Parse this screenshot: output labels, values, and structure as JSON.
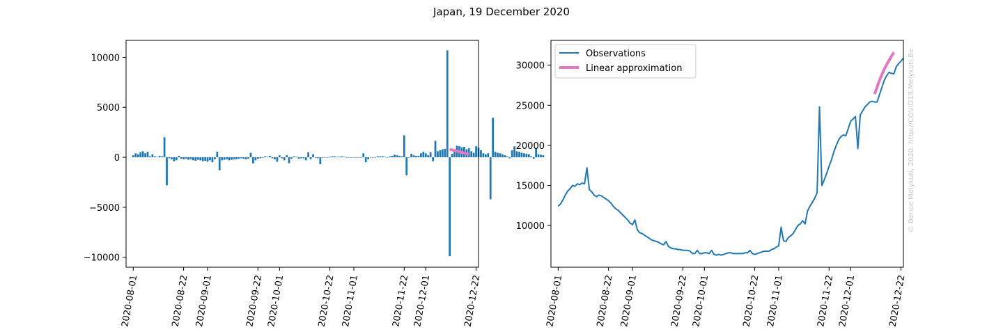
{
  "figure": {
    "title": "Japan, 19 December 2020",
    "watermark": "© Bence Melykuti, 2020. http://COVID19.Melykuti.Be"
  },
  "chart_data": [
    {
      "type": "bar",
      "panel": "left",
      "title": "",
      "xlabel": "",
      "ylabel": "",
      "xlim": [
        "2020-07-29",
        "2020-12-23"
      ],
      "ylim": [
        -11000,
        11700
      ],
      "x_ticks": [
        "2020-08-01",
        "2020-08-22",
        "2020-09-01",
        "2020-09-22",
        "2020-10-01",
        "2020-10-22",
        "2020-11-01",
        "2020-11-22",
        "2020-12-01",
        "2020-12-22"
      ],
      "y_ticks": [
        -10000,
        -5000,
        0,
        5000,
        10000
      ],
      "y_tick_labels": [
        "−10000",
        "−5000",
        "0",
        "5000",
        "10000"
      ],
      "grid": false,
      "colors": {
        "bars": "#1f77b4",
        "fit": "#e377c2"
      },
      "start_date": "2020-08-01",
      "values": [
        200,
        400,
        300,
        500,
        600,
        400,
        550,
        100,
        300,
        100,
        50,
        150,
        100,
        2000,
        -2800,
        -100,
        -200,
        -400,
        -300,
        150,
        -150,
        -200,
        -150,
        -250,
        -200,
        -300,
        -350,
        -250,
        -300,
        -400,
        -350,
        -450,
        -300,
        -500,
        -200,
        550,
        -1300,
        -300,
        -250,
        -200,
        -300,
        -250,
        -200,
        -200,
        -150,
        -100,
        -150,
        -200,
        -150,
        450,
        -600,
        -300,
        -150,
        -100,
        -50,
        100,
        50,
        150,
        -100,
        -200,
        -450,
        200,
        -100,
        -300,
        200,
        -600,
        -150,
        100,
        50,
        -150,
        -100,
        -100,
        -300,
        500,
        -200,
        300,
        -50,
        -100,
        -700,
        0,
        0,
        0,
        50,
        100,
        100,
        50,
        50,
        100,
        50,
        0,
        0,
        0,
        0,
        0,
        0,
        0,
        400,
        -500,
        -200,
        0,
        0,
        0,
        100,
        100,
        100,
        50,
        0,
        100,
        150,
        250,
        200,
        150,
        100,
        2200,
        -1800,
        0,
        350,
        200,
        150,
        150,
        400,
        550,
        400,
        200,
        500,
        -400,
        1650,
        600,
        700,
        800,
        850,
        10700,
        -9900,
        350,
        750,
        1150,
        1100,
        1000,
        1050,
        800,
        900,
        600,
        450,
        1100,
        950,
        700,
        400,
        300,
        400,
        -4200,
        3950,
        550,
        450,
        400,
        300,
        200,
        100,
        -100,
        700,
        1100,
        600,
        550,
        450,
        400,
        350,
        300,
        100,
        -150,
        900,
        300,
        250,
        200
      ],
      "fit": {
        "x": [
          "2020-12-11",
          "2020-12-19"
        ],
        "y": [
          800,
          300
        ]
      }
    },
    {
      "type": "line",
      "panel": "right",
      "title": "",
      "xlabel": "",
      "ylabel": "",
      "xlim": [
        "2020-07-29",
        "2020-12-23"
      ],
      "ylim": [
        4800,
        33100
      ],
      "x_ticks": [
        "2020-08-01",
        "2020-08-22",
        "2020-09-01",
        "2020-09-22",
        "2020-10-01",
        "2020-10-22",
        "2020-11-01",
        "2020-11-22",
        "2020-12-01",
        "2020-12-22"
      ],
      "y_ticks": [
        10000,
        15000,
        20000,
        25000,
        30000
      ],
      "grid": false,
      "legend": {
        "placement": "top-left"
      },
      "colors": {
        "observations": "#1f77b4",
        "fit": "#e377c2"
      },
      "series": [
        {
          "name": "Observations",
          "start_date": "2020-08-01",
          "values": [
            12400,
            12700,
            13200,
            13800,
            14300,
            14600,
            15000,
            14900,
            15200,
            15100,
            15300,
            15200,
            17200,
            14500,
            14200,
            13800,
            13600,
            13800,
            13700,
            13500,
            13300,
            13100,
            12800,
            12400,
            12100,
            11900,
            11600,
            11300,
            11000,
            10700,
            10300,
            10100,
            10700,
            9500,
            9100,
            9000,
            8800,
            8600,
            8400,
            8200,
            8100,
            8000,
            7900,
            7700,
            7600,
            8000,
            7400,
            7200,
            7100,
            7100,
            7000,
            7000,
            6900,
            6900,
            6900,
            6800,
            6500,
            6500,
            6900,
            6500,
            6500,
            6600,
            6600,
            6500,
            6900,
            6400,
            6300,
            6400,
            6300,
            6400,
            6500,
            6600,
            6600,
            6500,
            6500,
            6500,
            6500,
            6500,
            6600,
            6600,
            6900,
            6500,
            6400,
            6500,
            6600,
            6700,
            6800,
            6800,
            6800,
            7000,
            7100,
            7300,
            7500,
            9800,
            8100,
            8000,
            8500,
            8700,
            9000,
            9500,
            10000,
            10200,
            10600,
            10200,
            11800,
            12400,
            12900,
            13400,
            14100,
            24800,
            15000,
            15700,
            16500,
            17400,
            18200,
            19200,
            20000,
            20700,
            21100,
            21300,
            21200,
            22100,
            23000,
            23300,
            23600,
            19600,
            23800,
            24300,
            24800,
            25100,
            25400,
            25500,
            25400,
            25400,
            26300,
            27200,
            28100,
            28700,
            29100,
            29000,
            28900,
            29800,
            30200,
            30500,
            30900
          ]
        },
        {
          "name": "Linear approximation",
          "x": [
            "2020-12-11",
            "2020-12-13",
            "2020-12-15",
            "2020-12-17",
            "2020-12-19"
          ],
          "y": [
            26400,
            28100,
            29500,
            30600,
            31600
          ]
        }
      ]
    }
  ]
}
